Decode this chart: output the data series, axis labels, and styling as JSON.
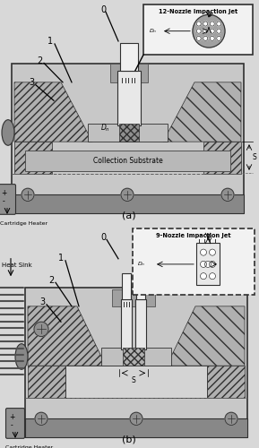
{
  "panel_a_label": "(a)",
  "panel_b_label": "(b)",
  "label_a_title": "12-Nozzle Impaction Jet",
  "label_b_title": "9-Nozzle Impaction Jet",
  "cartridge_heater": "Cartridge Heater",
  "heat_sink": "Heat Sink",
  "collection_substrate": "Collection Substrate",
  "outer_box_color": "#c8c8c8",
  "outer_box_edge": "#303030",
  "bottom_bar_color": "#888888",
  "hatch_wall_color": "#b0b0b0",
  "inner_cavity_color": "#d4d4d4",
  "substrate_color": "#b8b8b8",
  "nozzle_tube_color": "#e8e8e8",
  "nozzle_tip_color": "#a8a8a8",
  "intake_color": "#a0a0a0",
  "inset_bg_color": "#f2f2f2",
  "circle_fill_color": "#a8a8a8",
  "heater_color": "#909090",
  "dark": "#303030",
  "med_dark": "#505050",
  "bg_outer": "#d8d8d8"
}
